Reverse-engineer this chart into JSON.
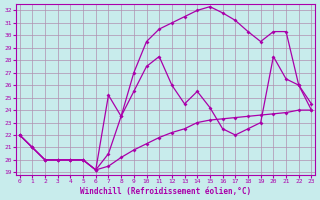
{
  "xlabel": "Windchill (Refroidissement éolien,°C)",
  "bg_color": "#c8ecec",
  "line_color": "#aa00aa",
  "grid_color": "#b090b0",
  "xlim": [
    -0.3,
    23.3
  ],
  "ylim": [
    18.8,
    32.5
  ],
  "yticks": [
    19,
    20,
    21,
    22,
    23,
    24,
    25,
    26,
    27,
    28,
    29,
    30,
    31,
    32
  ],
  "xticks": [
    0,
    1,
    2,
    3,
    4,
    5,
    6,
    7,
    8,
    9,
    10,
    11,
    12,
    13,
    14,
    15,
    16,
    17,
    18,
    19,
    20,
    21,
    22,
    23
  ],
  "line1_x": [
    0,
    1,
    2,
    3,
    4,
    5,
    6,
    7,
    8,
    9,
    10,
    11,
    12,
    13,
    14,
    15,
    16,
    17,
    18,
    19,
    20,
    21,
    22,
    23
  ],
  "line1_y": [
    22,
    21,
    20,
    20,
    20,
    20,
    19.2,
    19.5,
    20.2,
    20.8,
    21.3,
    21.8,
    22.2,
    22.5,
    23.0,
    23.2,
    23.3,
    23.4,
    23.5,
    23.6,
    23.7,
    23.8,
    24.0,
    24.0
  ],
  "line2_x": [
    0,
    1,
    2,
    3,
    4,
    5,
    6,
    7,
    8,
    9,
    10,
    11,
    12,
    13,
    14,
    15,
    16,
    17,
    18,
    19,
    20,
    21,
    22,
    23
  ],
  "line2_y": [
    22,
    21,
    20,
    20,
    20,
    20,
    19.2,
    20.5,
    23.5,
    27.0,
    29.5,
    30.5,
    31.0,
    31.5,
    32.0,
    32.3,
    31.8,
    31.2,
    30.3,
    29.5,
    30.3,
    30.3,
    26.0,
    24.0
  ],
  "line3_x": [
    0,
    1,
    2,
    3,
    4,
    5,
    6,
    7,
    8,
    9,
    10,
    11,
    12,
    13,
    14,
    15,
    16,
    17,
    18,
    19,
    20,
    21,
    22,
    23
  ],
  "line3_y": [
    22,
    21,
    20,
    20,
    20,
    20,
    19.2,
    25.2,
    23.5,
    25.5,
    27.5,
    28.3,
    26.0,
    24.5,
    25.5,
    24.2,
    22.5,
    22.0,
    22.5,
    23.0,
    28.3,
    26.5,
    26.0,
    24.5
  ]
}
